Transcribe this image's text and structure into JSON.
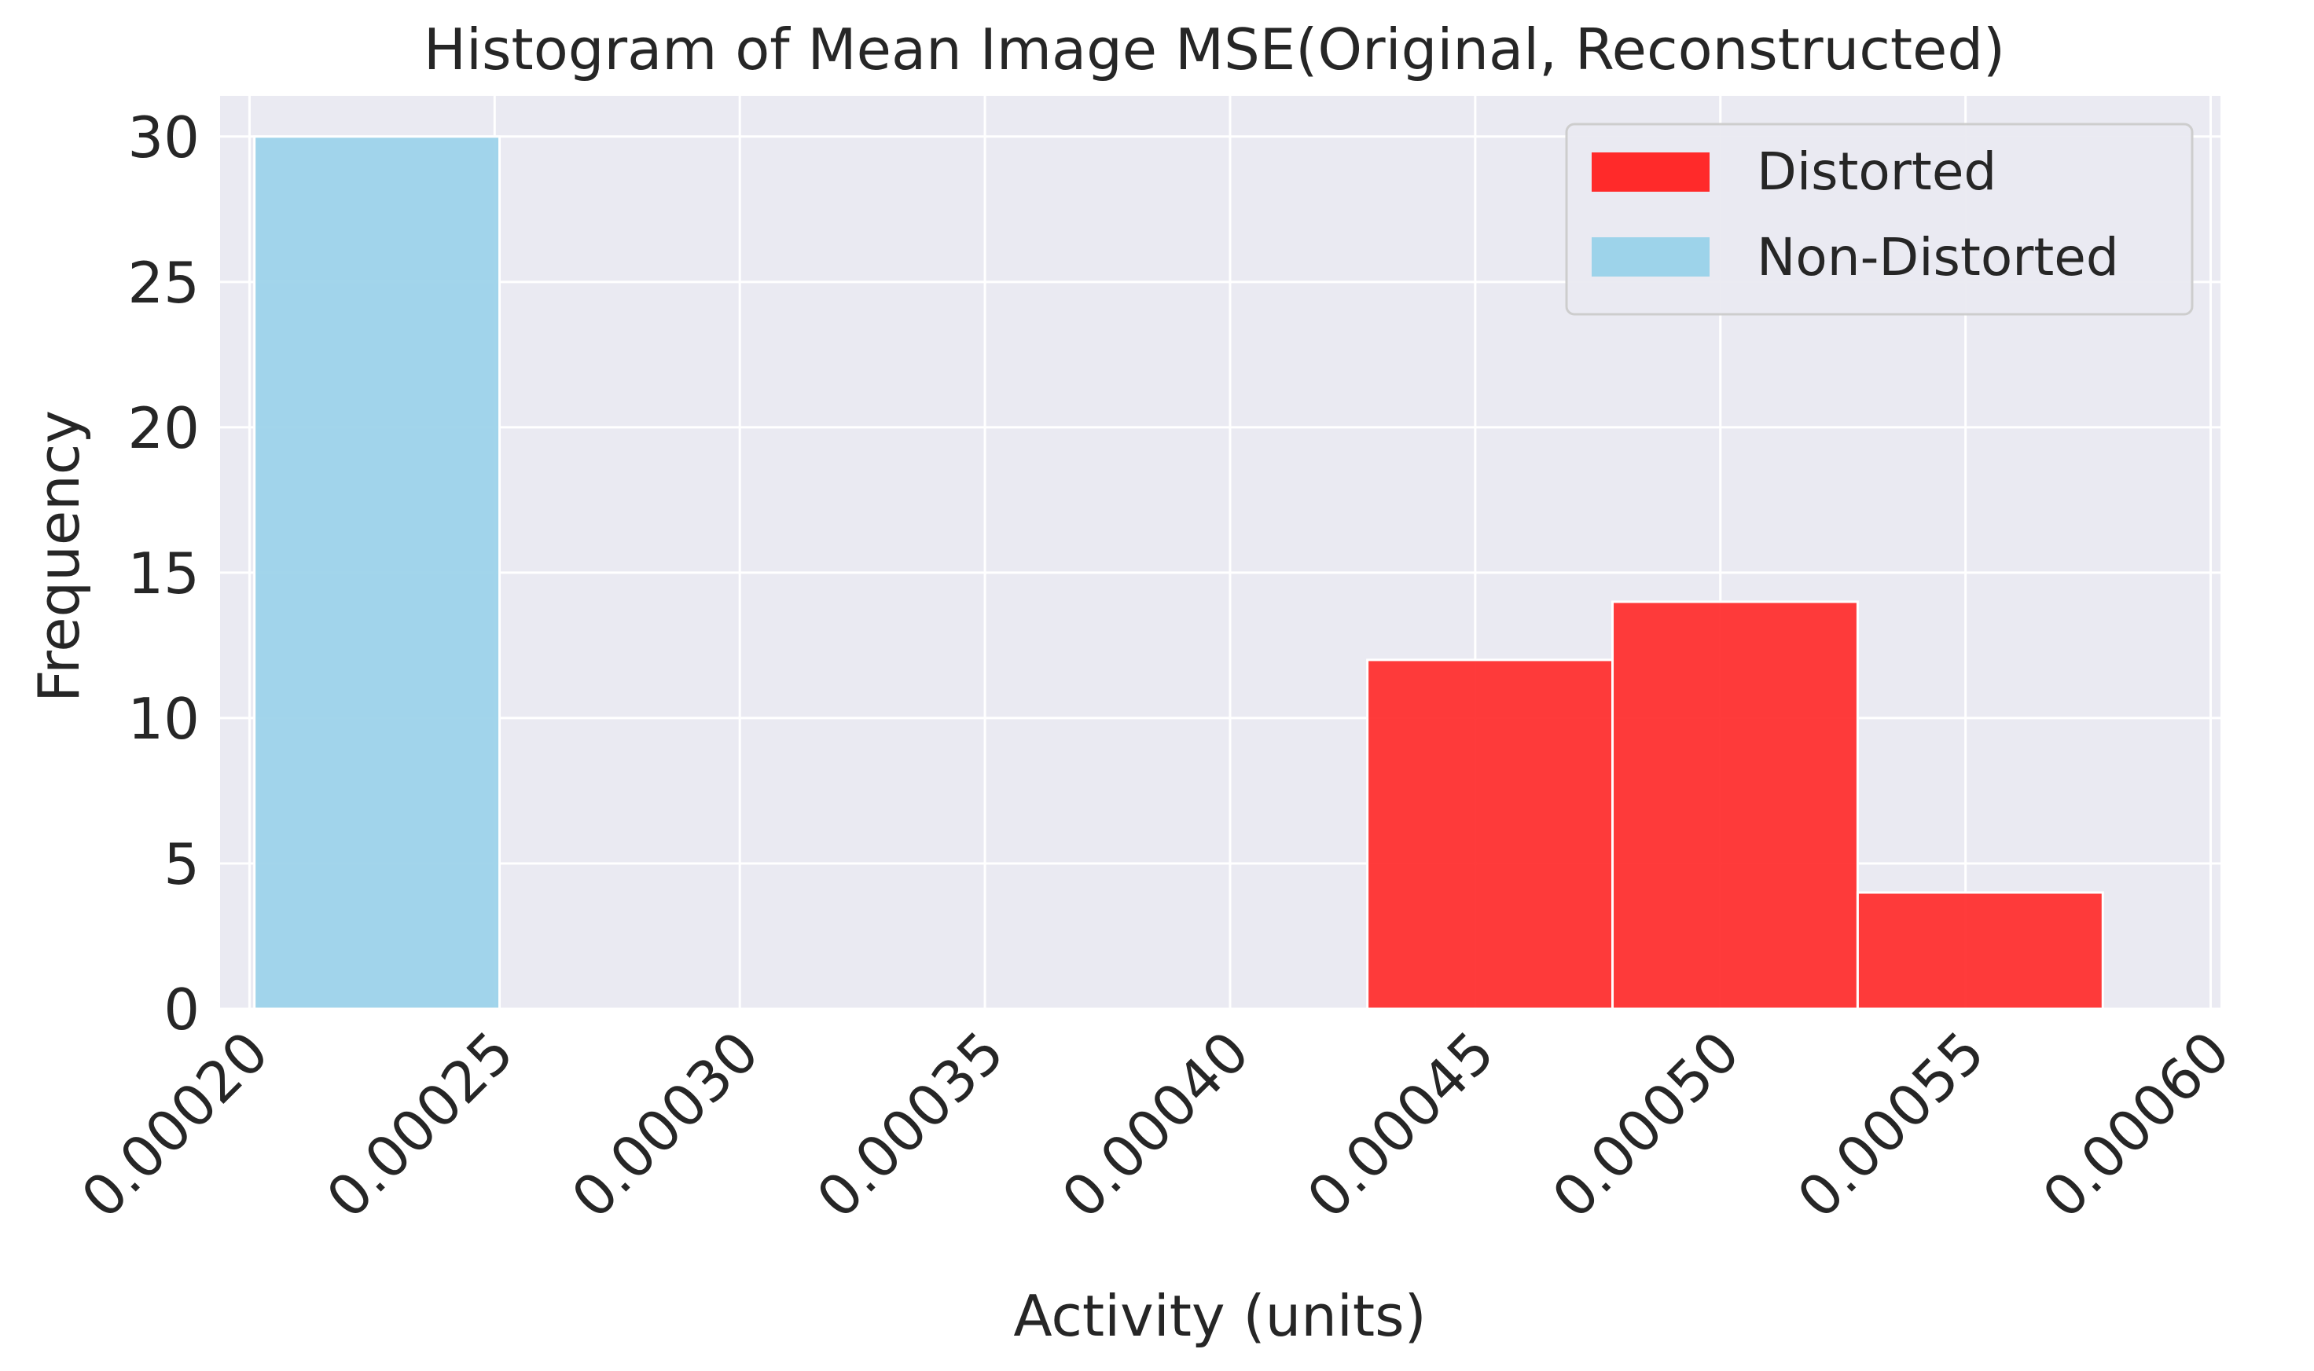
{
  "chart_data": {
    "type": "bar",
    "title": "Histogram of Mean Image MSE(Original, Reconstructed)",
    "xlabel": "Activity (units)",
    "ylabel": "Frequency",
    "xlim": [
      0.000194,
      0.000602
    ],
    "ylim": [
      0,
      31.4
    ],
    "xticks": [
      0.0002,
      0.00025,
      0.0003,
      0.00035,
      0.0004,
      0.00045,
      0.0005,
      0.00055,
      0.0006
    ],
    "xtick_labels": [
      "0.00020",
      "0.00025",
      "0.00030",
      "0.00035",
      "0.00040",
      "0.00045",
      "0.00050",
      "0.00055",
      "0.00060"
    ],
    "yticks": [
      0,
      5,
      10,
      15,
      20,
      25,
      30
    ],
    "ytick_labels": [
      "0",
      "5",
      "10",
      "15",
      "20",
      "25",
      "30"
    ],
    "grid": true,
    "legend_position": "top-right",
    "series": [
      {
        "name": "Distorted",
        "color": "#ff2a2a",
        "bins": [
          {
            "x0": 0.000428,
            "x1": 0.000478,
            "count": 12
          },
          {
            "x0": 0.000478,
            "x1": 0.000528,
            "count": 14
          },
          {
            "x0": 0.000528,
            "x1": 0.000578,
            "count": 4
          }
        ]
      },
      {
        "name": "Non-Distorted",
        "color": "#9dd3ea",
        "bins": [
          {
            "x0": 0.000201,
            "x1": 0.000251,
            "count": 30
          }
        ]
      }
    ]
  }
}
